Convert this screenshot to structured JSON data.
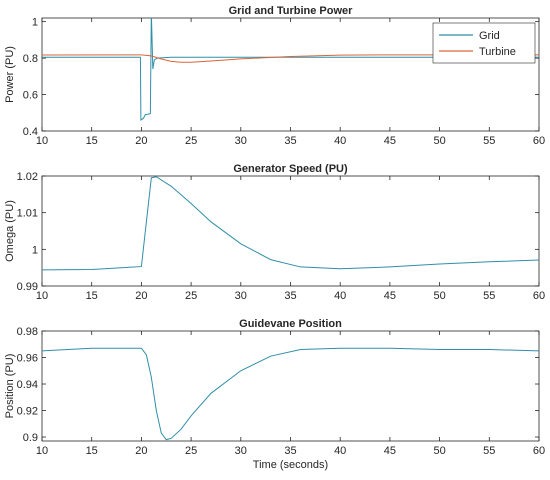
{
  "chart_data": [
    {
      "type": "line",
      "title": "Grid and Turbine Power",
      "xlabel": "",
      "ylabel": "Power (PU)",
      "xlim": [
        10,
        60
      ],
      "ylim": [
        0.4,
        1.02
      ],
      "xticks": [
        "10",
        "15",
        "20",
        "25",
        "30",
        "35",
        "40",
        "45",
        "50",
        "55",
        "60"
      ],
      "yticks": [
        "0.4",
        "0.6",
        "0.8",
        "1"
      ],
      "legend": "top-right",
      "grid": false,
      "series": [
        {
          "name": "Grid",
          "color": "#2f8fa8",
          "points": [
            [
              10,
              0.805
            ],
            [
              19.9,
              0.805
            ],
            [
              19.95,
              0.46
            ],
            [
              20.2,
              0.47
            ],
            [
              20.4,
              0.49
            ],
            [
              20.9,
              0.495
            ],
            [
              21.0,
              1.05
            ],
            [
              21.15,
              0.74
            ],
            [
              21.3,
              0.79
            ],
            [
              21.6,
              0.8
            ],
            [
              23,
              0.805
            ],
            [
              60,
              0.805
            ]
          ]
        },
        {
          "name": "Turbine",
          "color": "#d9663a",
          "points": [
            [
              10,
              0.817
            ],
            [
              20,
              0.818
            ],
            [
              21,
              0.812
            ],
            [
              22,
              0.795
            ],
            [
              23,
              0.782
            ],
            [
              24,
              0.777
            ],
            [
              25,
              0.777
            ],
            [
              27,
              0.784
            ],
            [
              30,
              0.796
            ],
            [
              35,
              0.809
            ],
            [
              40,
              0.816
            ],
            [
              45,
              0.818
            ],
            [
              50,
              0.818
            ],
            [
              55,
              0.818
            ],
            [
              60,
              0.818
            ]
          ]
        }
      ]
    },
    {
      "type": "line",
      "title": "Generator Speed (PU)",
      "xlabel": "",
      "ylabel": "Omega (PU)",
      "xlim": [
        10,
        60
      ],
      "ylim": [
        0.99,
        1.02
      ],
      "xticks": [
        "10",
        "15",
        "20",
        "25",
        "30",
        "35",
        "40",
        "45",
        "50",
        "55",
        "60"
      ],
      "yticks": [
        "0.99",
        "1",
        "1.01",
        "1.02"
      ],
      "grid": false,
      "series": [
        {
          "color": "#2f8fa8",
          "points": [
            [
              10,
              0.9944
            ],
            [
              15,
              0.9945
            ],
            [
              20,
              0.9953
            ],
            [
              20.5,
              1.0075
            ],
            [
              21,
              1.0195
            ],
            [
              21.5,
              1.0198
            ],
            [
              23,
              1.0172
            ],
            [
              25,
              1.0125
            ],
            [
              27,
              1.0075
            ],
            [
              30,
              1.0015
            ],
            [
              33,
              0.9972
            ],
            [
              36,
              0.9952
            ],
            [
              40,
              0.9947
            ],
            [
              45,
              0.9952
            ],
            [
              50,
              0.996
            ],
            [
              55,
              0.9966
            ],
            [
              60,
              0.9971
            ]
          ]
        }
      ]
    },
    {
      "type": "line",
      "title": "Guidevane Position",
      "xlabel": "Time (seconds)",
      "ylabel": "Position (PU)",
      "xlim": [
        10,
        60
      ],
      "ylim": [
        0.897,
        0.98
      ],
      "xticks": [
        "10",
        "15",
        "20",
        "25",
        "30",
        "35",
        "40",
        "45",
        "50",
        "55",
        "60"
      ],
      "yticks": [
        "0.9",
        "0.92",
        "0.94",
        "0.96",
        "0.98"
      ],
      "grid": false,
      "series": [
        {
          "color": "#2f8fa8",
          "points": [
            [
              10,
              0.965
            ],
            [
              15,
              0.967
            ],
            [
              20,
              0.967
            ],
            [
              20.5,
              0.962
            ],
            [
              21,
              0.945
            ],
            [
              21.5,
              0.92
            ],
            [
              22,
              0.903
            ],
            [
              22.5,
              0.898
            ],
            [
              23,
              0.899
            ],
            [
              24,
              0.906
            ],
            [
              25,
              0.916
            ],
            [
              27,
              0.933
            ],
            [
              30,
              0.95
            ],
            [
              33,
              0.961
            ],
            [
              36,
              0.966
            ],
            [
              40,
              0.967
            ],
            [
              45,
              0.967
            ],
            [
              50,
              0.966
            ],
            [
              55,
              0.966
            ],
            [
              60,
              0.965
            ]
          ]
        }
      ]
    }
  ]
}
